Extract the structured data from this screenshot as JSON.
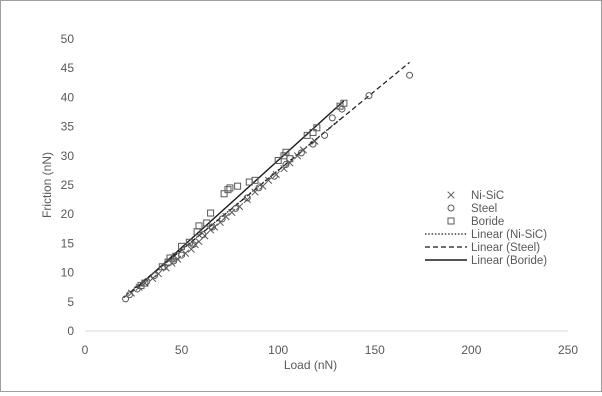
{
  "chart_data": {
    "type": "scatter",
    "xlabel": "Load (nN)",
    "ylabel": "Friction (nN)",
    "xlim": [
      0,
      250
    ],
    "ylim": [
      0,
      50
    ],
    "xticks": [
      "0",
      "50",
      "100",
      "150",
      "200",
      "250"
    ],
    "yticks": [
      "0",
      "5",
      "10",
      "15",
      "20",
      "25",
      "30",
      "35",
      "40",
      "45",
      "50"
    ],
    "grid": false,
    "legend_position": "right",
    "series": [
      {
        "name": "Ni-SiC",
        "marker": "x",
        "points": [
          [
            24,
            6.5
          ],
          [
            28,
            7.5
          ],
          [
            31,
            8.2
          ],
          [
            35,
            9.0
          ],
          [
            38,
            9.8
          ],
          [
            42,
            10.8
          ],
          [
            45,
            11.6
          ],
          [
            48,
            12.3
          ],
          [
            52,
            13.3
          ],
          [
            55,
            14.0
          ],
          [
            57,
            14.8
          ],
          [
            59,
            15.3
          ],
          [
            62,
            16.3
          ],
          [
            65,
            17.3
          ],
          [
            67,
            17.8
          ],
          [
            70,
            18.6
          ],
          [
            73,
            19.6
          ],
          [
            76,
            20.3
          ],
          [
            80,
            21.3
          ],
          [
            84,
            22.5
          ],
          [
            88,
            23.8
          ],
          [
            92,
            24.8
          ],
          [
            95,
            25.8
          ],
          [
            99,
            26.8
          ],
          [
            103,
            27.8
          ],
          [
            106,
            28.8
          ],
          [
            110,
            30.0
          ],
          [
            113,
            31.0
          ],
          [
            119,
            32.5
          ]
        ]
      },
      {
        "name": "Steel",
        "marker": "o",
        "points": [
          [
            21,
            5.5
          ],
          [
            23,
            6.2
          ],
          [
            27,
            7.2
          ],
          [
            32,
            8.5
          ],
          [
            36,
            9.5
          ],
          [
            41,
            11.0
          ],
          [
            46,
            12.0
          ],
          [
            50,
            13.0
          ],
          [
            56,
            14.8
          ],
          [
            61,
            16.5
          ],
          [
            66,
            17.8
          ],
          [
            71,
            19.2
          ],
          [
            78,
            21.0
          ],
          [
            84,
            22.8
          ],
          [
            90,
            24.5
          ],
          [
            98,
            26.5
          ],
          [
            104,
            28.5
          ],
          [
            112,
            30.5
          ],
          [
            118,
            32.0
          ],
          [
            124,
            33.5
          ],
          [
            128,
            36.5
          ],
          [
            133,
            38.0
          ],
          [
            147,
            40.3
          ],
          [
            168,
            43.8
          ]
        ]
      },
      {
        "name": "Boride",
        "marker": "square",
        "points": [
          [
            29,
            7.8
          ],
          [
            31,
            8.2
          ],
          [
            40,
            11.0
          ],
          [
            43,
            11.8
          ],
          [
            44,
            12.5
          ],
          [
            47,
            12.8
          ],
          [
            50,
            14.5
          ],
          [
            54,
            15.2
          ],
          [
            58,
            17.0
          ],
          [
            59,
            18.0
          ],
          [
            63,
            18.5
          ],
          [
            65,
            20.2
          ],
          [
            72,
            23.5
          ],
          [
            74,
            24.2
          ],
          [
            75,
            24.5
          ],
          [
            79,
            24.8
          ],
          [
            85,
            25.5
          ],
          [
            88,
            25.8
          ],
          [
            100,
            29.2
          ],
          [
            103,
            30.0
          ],
          [
            104,
            30.6
          ],
          [
            106,
            29.5
          ],
          [
            115,
            33.5
          ],
          [
            118,
            34.0
          ],
          [
            120,
            34.8
          ],
          [
            132,
            38.5
          ],
          [
            134,
            39.0
          ]
        ]
      }
    ],
    "trendlines": [
      {
        "name": "Linear (Ni-SiC)",
        "style": "dotted",
        "x": [
          22,
          134
        ],
        "y": [
          6.3,
          36.8
        ]
      },
      {
        "name": "Linear (Steel)",
        "style": "dashed",
        "x": [
          20,
          168
        ],
        "y": [
          5.7,
          46.0
        ]
      },
      {
        "name": "Linear (Boride)",
        "style": "solid",
        "x": [
          27,
          134
        ],
        "y": [
          7.4,
          39.4
        ]
      }
    ]
  },
  "colors": {
    "marker": "#595959",
    "line": "#1a1a1a",
    "axis": "#d9d9d9",
    "text": "#595959",
    "border": "#9e9e9e"
  }
}
